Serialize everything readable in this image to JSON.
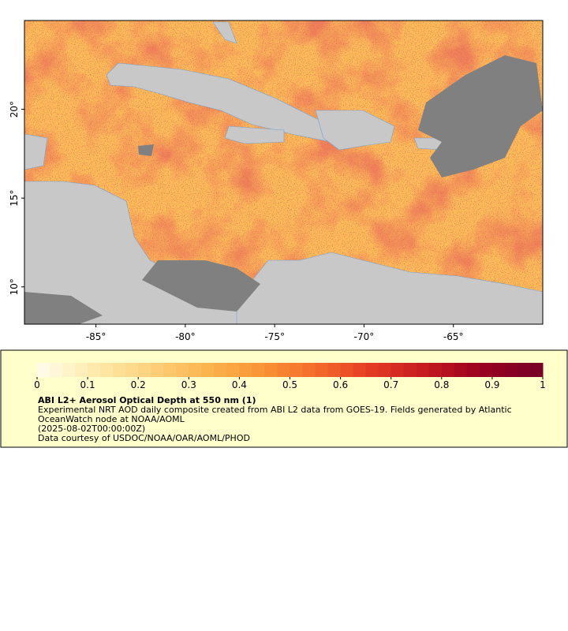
{
  "map": {
    "lon_range": [
      -89,
      -60
    ],
    "lat_range": [
      7.9,
      25
    ],
    "lon_ticks": [
      {
        "value": -85,
        "label": "-85°"
      },
      {
        "value": -80,
        "label": "-80°"
      },
      {
        "value": -75,
        "label": "-75°"
      },
      {
        "value": -70,
        "label": "-70°"
      },
      {
        "value": -65,
        "label": "-65°"
      }
    ],
    "lat_ticks": [
      {
        "value": 10,
        "label": "10°"
      },
      {
        "value": 15,
        "label": "15°"
      },
      {
        "value": 20,
        "label": "20°"
      }
    ]
  },
  "colorbar": {
    "range": [
      0,
      1
    ],
    "ticks": [
      0,
      0.1,
      0.2,
      0.3,
      0.4,
      0.5,
      0.6,
      0.7,
      0.8,
      0.9,
      1
    ],
    "segments": 40,
    "colors": [
      "#fffbe6",
      "#fee9a8",
      "#fdd07a",
      "#fcb44e",
      "#f99336",
      "#f46a2b",
      "#e33a23",
      "#c51a20",
      "#99001f",
      "#7a0027"
    ]
  },
  "legend": {
    "title": "ABI L2+ Aerosol Optical Depth at 550 nm (1)",
    "lines": [
      "Experimental NRT AOD daily composite created from ABI L2 data from GOES-19. Fields generated by Atlantic",
      "OceanWatch node at NOAA/AOML",
      "(2025-08-02T00:00:00Z)",
      "Data courtesy of USDOC/NOAA/OAR/AOML/PHOD"
    ]
  }
}
